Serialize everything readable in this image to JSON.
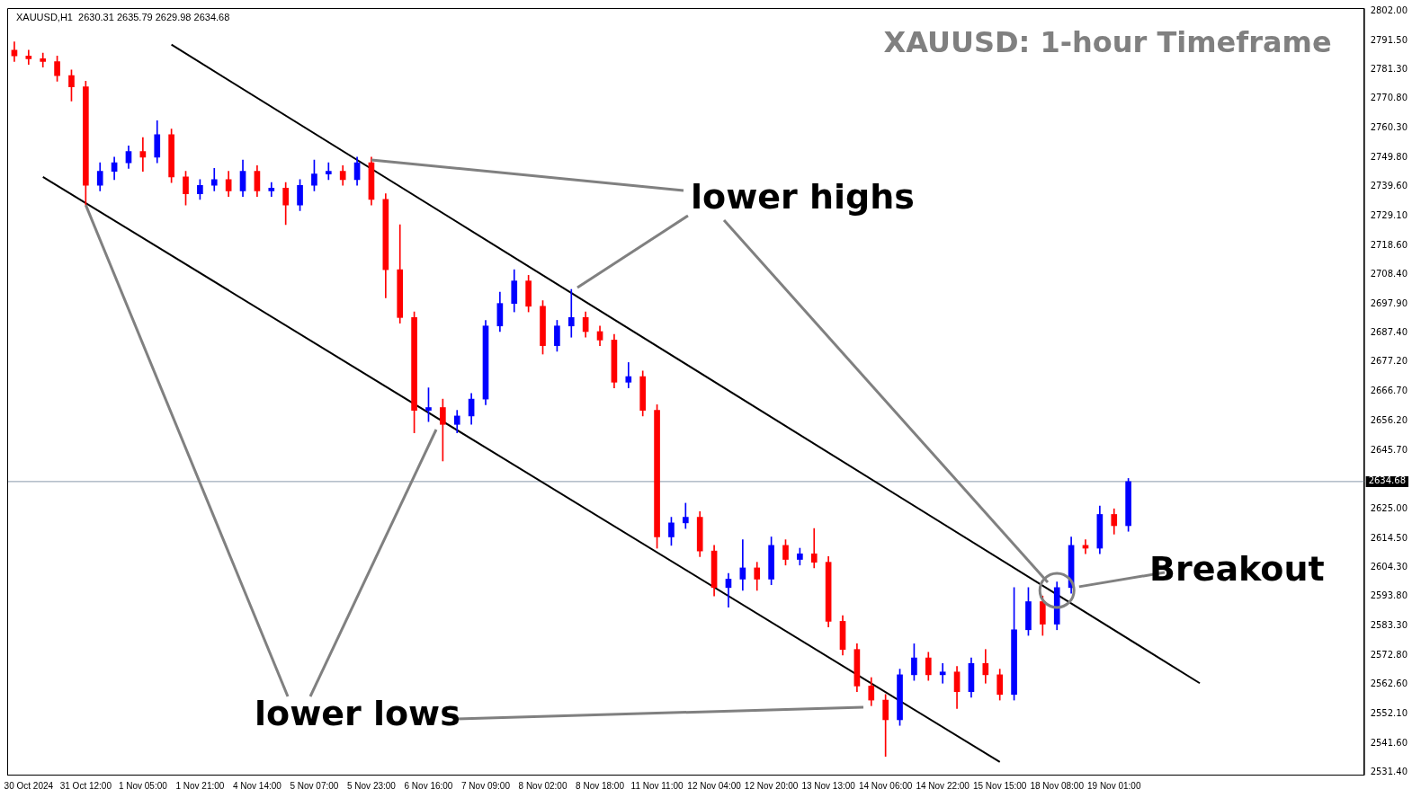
{
  "chart_data": {
    "type": "candlestick",
    "title": "XAUUSD: 1-hour Timeframe",
    "annotations": [
      "XAUUSD,H1  2630.31 2635.79 2629.98 2634.68",
      {
        "text": "lower highs",
        "x": "5 Nov 23:00",
        "y": 2749
      },
      {
        "text": "lower lows",
        "x": "31 Oct 12:00",
        "y": 2733
      },
      {
        "text": "Breakout",
        "x": "18 Nov 08:00",
        "y": 2596
      }
    ],
    "categories": [
      null,
      "30 Oct 2024",
      null,
      null,
      null,
      "31 Oct 12:00",
      null,
      null,
      null,
      "1 Nov 05:00",
      null,
      null,
      null,
      "1 Nov 21:00",
      null,
      null,
      null,
      "4 Nov 14:00",
      null,
      null,
      null,
      "5 Nov 07:00",
      null,
      null,
      null,
      "5 Nov 23:00",
      null,
      null,
      null,
      "6 Nov 16:00",
      null,
      null,
      null,
      "7 Nov 09:00",
      null,
      null,
      null,
      "8 Nov 02:00",
      null,
      null,
      null,
      "8 Nov 18:00",
      null,
      null,
      null,
      "11 Nov 11:00",
      null,
      null,
      null,
      "12 Nov 04:00",
      null,
      null,
      null,
      "12 Nov 20:00",
      null,
      null,
      null,
      "13 Nov 13:00",
      null,
      null,
      null,
      "14 Nov 06:00",
      null,
      null,
      null,
      "14 Nov 22:00",
      null,
      null,
      null,
      "15 Nov 15:00",
      null,
      null,
      null,
      "18 Nov 08:00",
      null,
      null,
      null,
      "19 Nov 01:00",
      null,
      null,
      null,
      null,
      null,
      null,
      null,
      null,
      null,
      null,
      null,
      null,
      null,
      null,
      null,
      null,
      null
    ],
    "ohlc": [
      [
        2788,
        2791,
        2784,
        2786
      ],
      [
        2786,
        2788,
        2783,
        2785
      ],
      [
        2785,
        2787,
        2782,
        2784
      ],
      [
        2784,
        2786,
        2777,
        2779
      ],
      [
        2779,
        2781,
        2770,
        2775
      ],
      [
        2775,
        2777,
        2733,
        2740
      ],
      [
        2740,
        2748,
        2738,
        2745
      ],
      [
        2745,
        2750,
        2742,
        2748
      ],
      [
        2748,
        2754,
        2746,
        2752
      ],
      [
        2752,
        2757,
        2745,
        2750
      ],
      [
        2750,
        2763,
        2748,
        2758
      ],
      [
        2758,
        2760,
        2741,
        2743
      ],
      [
        2743,
        2745,
        2733,
        2737
      ],
      [
        2737,
        2742,
        2735,
        2740
      ],
      [
        2740,
        2746,
        2738,
        2742
      ],
      [
        2742,
        2745,
        2736,
        2738
      ],
      [
        2738,
        2749,
        2736,
        2745
      ],
      [
        2745,
        2747,
        2736,
        2738
      ],
      [
        2738,
        2741,
        2736,
        2739
      ],
      [
        2739,
        2741,
        2726,
        2733
      ],
      [
        2733,
        2742,
        2731,
        2740
      ],
      [
        2740,
        2749,
        2738,
        2744
      ],
      [
        2744,
        2748,
        2742,
        2745
      ],
      [
        2745,
        2747,
        2740,
        2742
      ],
      [
        2742,
        2750,
        2740,
        2748
      ],
      [
        2748,
        2750,
        2733,
        2735
      ],
      [
        2735,
        2737,
        2700,
        2710
      ],
      [
        2710,
        2726,
        2691,
        2693
      ],
      [
        2693,
        2695,
        2652,
        2660
      ],
      [
        2660,
        2668,
        2656,
        2661
      ],
      [
        2661,
        2664,
        2642,
        2655
      ],
      [
        2655,
        2660,
        2652,
        2658
      ],
      [
        2658,
        2666,
        2655,
        2664
      ],
      [
        2664,
        2692,
        2662,
        2690
      ],
      [
        2690,
        2702,
        2688,
        2698
      ],
      [
        2698,
        2710,
        2695,
        2706
      ],
      [
        2706,
        2708,
        2695,
        2697
      ],
      [
        2697,
        2699,
        2680,
        2683
      ],
      [
        2683,
        2692,
        2681,
        2690
      ],
      [
        2690,
        2703,
        2686,
        2693
      ],
      [
        2693,
        2695,
        2686,
        2688
      ],
      [
        2688,
        2690,
        2683,
        2685
      ],
      [
        2685,
        2687,
        2668,
        2670
      ],
      [
        2670,
        2677,
        2668,
        2672
      ],
      [
        2672,
        2674,
        2658,
        2660
      ],
      [
        2660,
        2662,
        2611,
        2615
      ],
      [
        2615,
        2622,
        2612,
        2620
      ],
      [
        2620,
        2627,
        2618,
        2622
      ],
      [
        2622,
        2624,
        2608,
        2610
      ],
      [
        2610,
        2612,
        2594,
        2597
      ],
      [
        2597,
        2602,
        2590,
        2600
      ],
      [
        2600,
        2614,
        2596,
        2604
      ],
      [
        2604,
        2606,
        2596,
        2600
      ],
      [
        2600,
        2615,
        2598,
        2612
      ],
      [
        2612,
        2614,
        2605,
        2607
      ],
      [
        2607,
        2611,
        2605,
        2609
      ],
      [
        2609,
        2618,
        2604,
        2606
      ],
      [
        2606,
        2608,
        2583,
        2585
      ],
      [
        2585,
        2587,
        2573,
        2575
      ],
      [
        2575,
        2577,
        2560,
        2562
      ],
      [
        2562,
        2565,
        2555,
        2557
      ],
      [
        2557,
        2559,
        2537,
        2550
      ],
      [
        2550,
        2568,
        2548,
        2566
      ],
      [
        2566,
        2577,
        2564,
        2572
      ],
      [
        2572,
        2574,
        2564,
        2566
      ],
      [
        2566,
        2570,
        2563,
        2567
      ],
      [
        2567,
        2569,
        2554,
        2560
      ],
      [
        2560,
        2572,
        2558,
        2570
      ],
      [
        2570,
        2575,
        2563,
        2566
      ],
      [
        2566,
        2568,
        2557,
        2559
      ],
      [
        2559,
        2597,
        2557,
        2582
      ],
      [
        2582,
        2597,
        2580,
        2592
      ],
      [
        2592,
        2594,
        2580,
        2584
      ],
      [
        2584,
        2599,
        2582,
        2597
      ],
      [
        2597,
        2615,
        2595,
        2612
      ],
      [
        2612,
        2614,
        2609,
        2611
      ],
      [
        2611,
        2626,
        2609,
        2623
      ],
      [
        2623,
        2625,
        2616,
        2619
      ],
      [
        2619,
        2635.79,
        2617,
        2634.68
      ],
      null,
      null,
      null,
      null,
      null,
      null,
      null,
      null,
      null,
      null,
      null,
      null,
      null,
      null,
      null,
      null
    ],
    "colors": [
      "#ff0000",
      "#ff0000",
      "#ff0000",
      "#ff0000",
      "#ff0000",
      "#ff0000",
      "#0000ff",
      "#0000ff",
      "#0000ff",
      "#ff0000",
      "#0000ff",
      "#ff0000",
      "#ff0000",
      "#0000ff",
      "#0000ff",
      "#ff0000",
      "#0000ff",
      "#ff0000",
      "#0000ff",
      "#ff0000",
      "#0000ff",
      "#0000ff",
      "#0000ff",
      "#ff0000",
      "#0000ff",
      "#ff0000",
      "#ff0000",
      "#ff0000",
      "#ff0000",
      "#0000ff",
      "#ff0000",
      "#0000ff",
      "#0000ff",
      "#0000ff",
      "#0000ff",
      "#0000ff",
      "#ff0000",
      "#ff0000",
      "#0000ff",
      "#0000ff",
      "#ff0000",
      "#ff0000",
      "#ff0000",
      "#0000ff",
      "#ff0000",
      "#ff0000",
      "#0000ff",
      "#0000ff",
      "#ff0000",
      "#ff0000",
      "#0000ff",
      "#0000ff",
      "#ff0000",
      "#0000ff",
      "#ff0000",
      "#0000ff",
      "#ff0000",
      "#ff0000",
      "#ff0000",
      "#ff0000",
      "#ff0000",
      "#ff0000",
      "#0000ff",
      "#0000ff",
      "#ff0000",
      "#0000ff",
      "#ff0000",
      "#0000ff",
      "#ff0000",
      "#ff0000",
      "#0000ff",
      "#0000ff",
      "#ff0000",
      "#0000ff",
      "#0000ff",
      "#ff0000",
      "#0000ff",
      "#ff0000",
      "#0000ff",
      null,
      null,
      null,
      null,
      null,
      null,
      null,
      null,
      null,
      null,
      null,
      null,
      null,
      null,
      null,
      null
    ],
    "series": [
      {
        "type": "line",
        "color": "#000000",
        "values": [
          null,
          null,
          null,
          null,
          null,
          null,
          null,
          null,
          null,
          null,
          null,
          2790,
          null,
          null,
          null,
          null,
          null,
          null,
          null,
          null,
          null,
          null,
          null,
          null,
          null,
          null,
          null,
          null,
          null,
          null,
          null,
          null,
          null,
          null,
          null,
          null,
          null,
          null,
          null,
          null,
          null,
          null,
          null,
          null,
          null,
          null,
          null,
          null,
          null,
          null,
          null,
          null,
          null,
          null,
          null,
          null,
          null,
          null,
          null,
          null,
          null,
          null,
          null,
          null,
          null,
          null,
          null,
          null,
          null,
          null,
          null,
          null,
          null,
          null,
          null,
          null,
          null,
          null,
          null,
          null,
          null,
          null,
          null,
          2563,
          null,
          null,
          null,
          null,
          null,
          null,
          null,
          null,
          null,
          null,
          null
        ]
      },
      {
        "type": "line",
        "color": "#000000",
        "values": [
          null,
          null,
          2743,
          null,
          null,
          null,
          null,
          null,
          null,
          null,
          null,
          null,
          null,
          null,
          null,
          null,
          null,
          null,
          null,
          null,
          null,
          null,
          null,
          null,
          null,
          null,
          null,
          null,
          null,
          null,
          null,
          null,
          null,
          null,
          null,
          null,
          null,
          null,
          null,
          null,
          null,
          null,
          null,
          null,
          null,
          null,
          null,
          null,
          null,
          null,
          null,
          null,
          null,
          null,
          null,
          null,
          null,
          null,
          null,
          null,
          null,
          null,
          null,
          null,
          null,
          null,
          null,
          null,
          null,
          2535,
          null,
          null,
          null,
          null,
          null,
          null,
          null,
          null,
          null,
          null,
          null,
          null,
          null,
          null,
          null,
          null,
          null,
          null,
          null,
          null,
          null,
          null,
          null,
          null,
          null
        ]
      }
    ],
    "ylim": [
      2530.5,
      2803
    ],
    "yticks": [
      {
        "value": 2531.4,
        "label": "2531.40"
      },
      {
        "value": 2541.6,
        "label": "2541.60"
      },
      {
        "value": 2552.1,
        "label": "2552.10"
      },
      {
        "value": 2562.6,
        "label": "2562.60"
      },
      {
        "value": 2572.8,
        "label": "2572.80"
      },
      {
        "value": 2583.3,
        "label": "2583.30"
      },
      {
        "value": 2593.8,
        "label": "2593.80"
      },
      {
        "value": 2604.3,
        "label": "2604.30"
      },
      {
        "value": 2614.5,
        "label": "2614.50"
      },
      {
        "value": 2625,
        "label": "2625.00"
      },
      {
        "value": 2645.7,
        "label": "2645.70"
      },
      {
        "value": 2656.2,
        "label": "2656.20"
      },
      {
        "value": 2666.7,
        "label": "2666.70"
      },
      {
        "value": 2677.2,
        "label": "2677.20"
      },
      {
        "value": 2687.4,
        "label": "2687.40"
      },
      {
        "value": 2697.9,
        "label": "2697.90"
      },
      {
        "value": 2708.4,
        "label": "2708.40"
      },
      {
        "value": 2718.6,
        "label": "2718.60"
      },
      {
        "value": 2729.1,
        "label": "2729.10"
      },
      {
        "value": 2739.6,
        "label": "2739.60"
      },
      {
        "value": 2749.8,
        "label": "2749.80"
      },
      {
        "value": 2760.3,
        "label": "2760.30"
      },
      {
        "value": 2770.8,
        "label": "2770.80"
      },
      {
        "value": 2781.3,
        "label": "2781.30"
      },
      {
        "value": 2791.5,
        "label": "2791.50"
      },
      {
        "value": 2802,
        "label": "2802.00"
      }
    ],
    "ref_lines": [
      {
        "axis": "y",
        "value": 2634.68,
        "label": "2634.68",
        "color": "#8899aa"
      }
    ],
    "grid": false,
    "legend": false
  }
}
